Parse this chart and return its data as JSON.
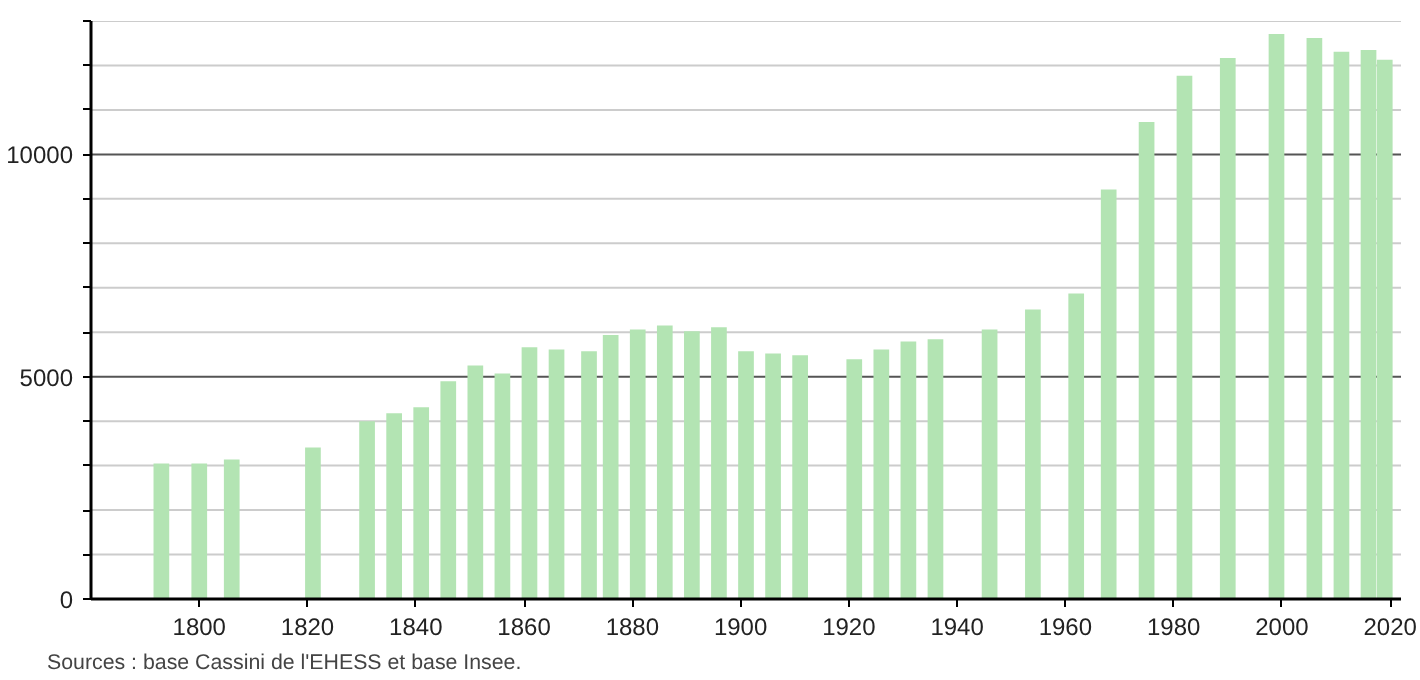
{
  "chart_data": {
    "type": "bar",
    "x": [
      1793,
      1800,
      1806,
      1821,
      1831,
      1836,
      1841,
      1846,
      1851,
      1856,
      1861,
      1866,
      1872,
      1876,
      1881,
      1886,
      1891,
      1896,
      1901,
      1906,
      1911,
      1921,
      1926,
      1931,
      1936,
      1946,
      1954,
      1962,
      1968,
      1975,
      1982,
      1990,
      1999,
      2006,
      2011,
      2016,
      2019
    ],
    "values": [
      3050,
      3050,
      3140,
      3410,
      4000,
      4180,
      4310,
      4900,
      5250,
      5070,
      5660,
      5610,
      5570,
      5940,
      6060,
      6150,
      6020,
      6110,
      5570,
      5520,
      5480,
      5390,
      5610,
      5790,
      5840,
      6060,
      6510,
      6870,
      9210,
      10730,
      11770,
      12170,
      12710,
      12620,
      12310,
      12350,
      12130
    ],
    "color": "#b3e4b3",
    "xlim": [
      1780,
      2022
    ],
    "xticks": [
      1800,
      1820,
      1840,
      1860,
      1880,
      1900,
      1920,
      1940,
      1960,
      1980,
      2000,
      2020
    ],
    "ylim": [
      0,
      13000
    ],
    "yticks": [
      0,
      {
        "value": 1000,
        "label": null
      },
      {
        "value": 2000,
        "label": null
      },
      {
        "value": 3000,
        "label": null
      },
      {
        "value": 4000,
        "label": null
      },
      5000,
      {
        "value": 6000,
        "label": null
      },
      {
        "value": 7000,
        "label": null
      },
      {
        "value": 8000,
        "label": null
      },
      {
        "value": 9000,
        "label": null
      },
      10000,
      {
        "value": 11000,
        "label": null
      },
      {
        "value": 12000,
        "label": null
      },
      {
        "value": 13000,
        "label": null
      }
    ],
    "grid": "y",
    "annotations": [
      "Sources : base Cassini de l'EHESS et base Insee."
    ]
  }
}
